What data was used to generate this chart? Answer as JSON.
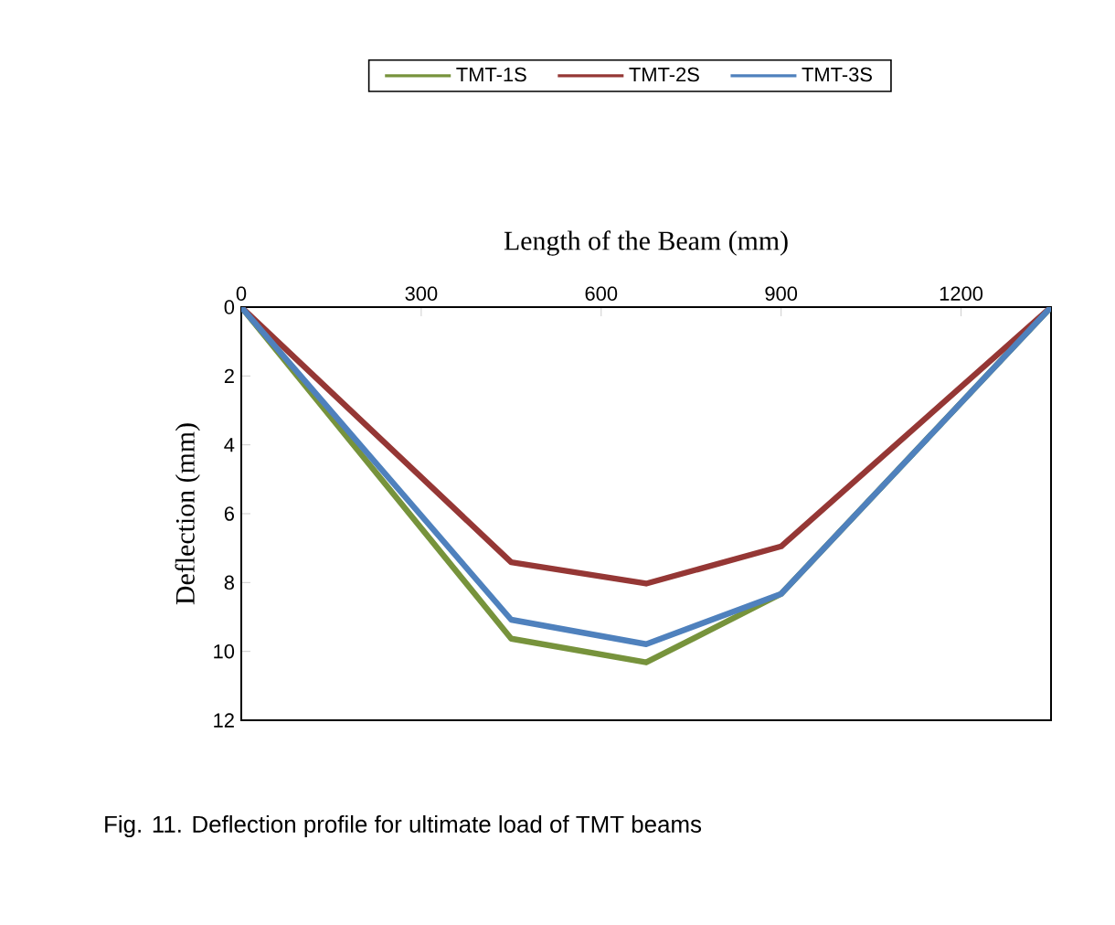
{
  "chart_data": {
    "type": "line",
    "xlabel": "Length of the Beam (mm)",
    "ylabel": "Deflection (mm)",
    "x": [
      0,
      450,
      675,
      900,
      1350
    ],
    "series": [
      {
        "name": "TMT-1S",
        "color": "#77933c",
        "values": [
          0,
          9.63,
          10.32,
          8.33,
          0
        ]
      },
      {
        "name": "TMT-2S",
        "color": "#953735",
        "values": [
          0,
          7.41,
          8.03,
          6.95,
          0
        ]
      },
      {
        "name": "TMT-3S",
        "color": "#4f81bd",
        "values": [
          0,
          9.08,
          9.79,
          8.33,
          0
        ]
      }
    ],
    "xlim": [
      0,
      1350
    ],
    "xticks": [
      0,
      300,
      600,
      900,
      1200
    ],
    "ylim": [
      12,
      0
    ],
    "yticks": [
      0,
      2,
      4,
      6,
      8,
      10,
      12
    ],
    "grid": false,
    "legend": "top",
    "marker": "none",
    "line_style": "solid",
    "annotations": [
      "Fig. 11. Deflection profile for ultimate load of TMT beams"
    ]
  }
}
